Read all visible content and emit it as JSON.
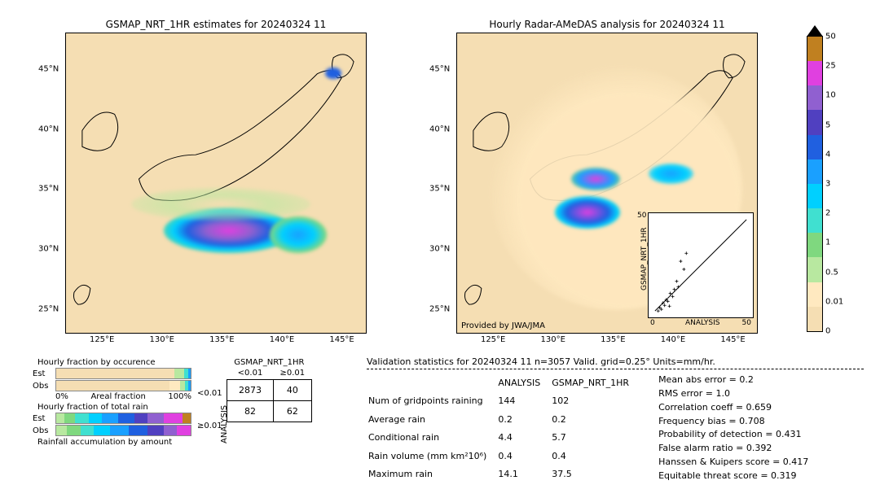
{
  "map_left": {
    "title": "GSMAP_NRT_1HR estimates for 20240324 11",
    "x_ticks": [
      "125°E",
      "130°E",
      "135°E",
      "140°E",
      "145°E"
    ],
    "y_ticks": [
      "25°N",
      "30°N",
      "35°N",
      "40°N",
      "45°N"
    ],
    "bg_color": "#f5deb3"
  },
  "map_right": {
    "title": "Hourly Radar-AMeDAS analysis for 20240324 11",
    "x_ticks": [
      "125°E",
      "130°E",
      "135°E",
      "140°E",
      "145°E"
    ],
    "y_ticks": [
      "25°N",
      "30°N",
      "35°N",
      "40°N",
      "45°N"
    ],
    "provider": "Provided by JWA/JMA",
    "bg_color": "#f5deb3"
  },
  "colorbar": {
    "ticks": [
      "0",
      "0.01",
      "0.5",
      "1",
      "2",
      "3",
      "4",
      "5",
      "10",
      "25",
      "50"
    ],
    "colors": [
      "#f5deb3",
      "#ffe9c0",
      "#b8e8a0",
      "#7fd87f",
      "#40e0d0",
      "#00d0ff",
      "#1aa0ff",
      "#2060e0",
      "#5040c0",
      "#9060d0",
      "#e040e0",
      "#c08020"
    ],
    "arrow_top_color": "#000000"
  },
  "inset_scatter": {
    "xlabel": "ANALYSIS",
    "ylabel": "GSMAP_NRT_1HR",
    "xlim": [
      0,
      50
    ],
    "ylim": [
      0,
      50
    ],
    "ticks": [
      0,
      10,
      20,
      30,
      40,
      50
    ]
  },
  "hbars": {
    "occ_title": "Hourly fraction by occurence",
    "rain_title": "Hourly fraction of total rain",
    "accum_title": "Rainfall accumulation by amount",
    "rows": [
      "Est",
      "Obs"
    ],
    "occ_est": [
      {
        "c": "#f5deb3",
        "w": 88
      },
      {
        "c": "#b8e8a0",
        "w": 7
      },
      {
        "c": "#40e0d0",
        "w": 3
      },
      {
        "c": "#1aa0ff",
        "w": 2
      }
    ],
    "occ_obs": [
      {
        "c": "#f5deb3",
        "w": 84
      },
      {
        "c": "#ffe9c0",
        "w": 8
      },
      {
        "c": "#b8e8a0",
        "w": 4
      },
      {
        "c": "#40e0d0",
        "w": 2
      },
      {
        "c": "#1aa0ff",
        "w": 2
      }
    ],
    "rain_est": [
      {
        "c": "#b8e8a0",
        "w": 6
      },
      {
        "c": "#7fd87f",
        "w": 8
      },
      {
        "c": "#40e0d0",
        "w": 10
      },
      {
        "c": "#00d0ff",
        "w": 10
      },
      {
        "c": "#1aa0ff",
        "w": 12
      },
      {
        "c": "#2060e0",
        "w": 12
      },
      {
        "c": "#5040c0",
        "w": 10
      },
      {
        "c": "#9060d0",
        "w": 12
      },
      {
        "c": "#e040e0",
        "w": 14
      },
      {
        "c": "#c08020",
        "w": 6
      }
    ],
    "rain_obs": [
      {
        "c": "#b8e8a0",
        "w": 8
      },
      {
        "c": "#7fd87f",
        "w": 10
      },
      {
        "c": "#40e0d0",
        "w": 10
      },
      {
        "c": "#00d0ff",
        "w": 12
      },
      {
        "c": "#1aa0ff",
        "w": 14
      },
      {
        "c": "#2060e0",
        "w": 14
      },
      {
        "c": "#5040c0",
        "w": 12
      },
      {
        "c": "#9060d0",
        "w": 10
      },
      {
        "c": "#e040e0",
        "w": 10
      }
    ],
    "areal_left": "0%",
    "areal_right": "100%",
    "areal_label": "Areal fraction"
  },
  "contingency": {
    "col_header": "GSMAP_NRT_1HR",
    "row_header": "ANALYSIS",
    "col_labels": [
      "<0.01",
      "≥0.01"
    ],
    "row_labels": [
      "<0.01",
      "≥0.01"
    ],
    "cells": [
      [
        "2873",
        "40"
      ],
      [
        "82",
        "62"
      ]
    ]
  },
  "validation": {
    "title": "Validation statistics for 20240324 11  n=3057 Valid. grid=0.25°  Units=mm/hr.",
    "col_headers": [
      "ANALYSIS",
      "GSMAP_NRT_1HR"
    ],
    "rows": [
      {
        "label": "Num of gridpoints raining",
        "a": "144",
        "b": "102"
      },
      {
        "label": "Average rain",
        "a": "0.2",
        "b": "0.2"
      },
      {
        "label": "Conditional rain",
        "a": "4.4",
        "b": "5.7"
      },
      {
        "label": "Rain volume (mm km²10⁶)",
        "a": "0.4",
        "b": "0.4"
      },
      {
        "label": "Maximum rain",
        "a": "14.1",
        "b": "37.5"
      }
    ],
    "metrics": [
      "Mean abs error =    0.2",
      "RMS error =    1.0",
      "Correlation coeff =  0.659",
      "Frequency bias =  0.708",
      "Probability of detection =  0.431",
      "False alarm ratio =  0.392",
      "Hanssen & Kuipers score =  0.417",
      "Equitable threat score =  0.319"
    ]
  }
}
